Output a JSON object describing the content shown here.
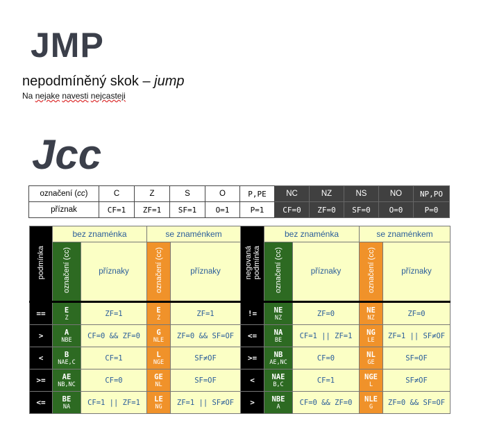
{
  "title": "JMP",
  "subtitle_main": "nepodmíněný skok – ",
  "subtitle_italic": "jump",
  "note": {
    "pre": "Na ",
    "w1": "nejake",
    "mid": " ",
    "w2": "navesti",
    "sp": " ",
    "w3": "nejcasteji"
  },
  "heading2": "Jcc",
  "top_table": {
    "row1_label_pre": "označení (",
    "row1_label_it": "cc",
    "row1_label_post": ")",
    "row2_label": "příznak",
    "codes": [
      "C",
      "Z",
      "S",
      "O",
      "P,PE",
      "NC",
      "NZ",
      "NS",
      "NO",
      "NP,PO"
    ],
    "flags": [
      "CF=1",
      "ZF=1",
      "SF=1",
      "O=1",
      "P=1",
      "CF=0",
      "ZF=0",
      "SF=0",
      "O=0",
      "P=0"
    ]
  },
  "main_table": {
    "header": {
      "unsigned": "bez znaménka",
      "signed": "se znaménkem",
      "condition": "podmínka",
      "neg_condition_1": "negovaná",
      "neg_condition_2": "podmínka",
      "code": "označení (cc)",
      "flags": "příznaky"
    },
    "rows": [
      {
        "op": "==",
        "u_cc": "E",
        "u_alt": "Z",
        "u_flags": "ZF=1",
        "s_cc": "E",
        "s_alt": "Z",
        "s_flags": "ZF=1",
        "nop": "!=",
        "nu_cc": "NE",
        "nu_alt": "NZ",
        "nu_flags": "ZF=0",
        "ns_cc": "NE",
        "ns_alt": "NZ",
        "ns_flags": "ZF=0"
      },
      {
        "op": ">",
        "u_cc": "A",
        "u_alt": "NBE",
        "u_flags": "CF=0 && ZF=0",
        "s_cc": "G",
        "s_alt": "NLE",
        "s_flags": "ZF=0 && SF=OF",
        "nop": "<=",
        "nu_cc": "NA",
        "nu_alt": "BE",
        "nu_flags": "CF=1 || ZF=1",
        "ns_cc": "NG",
        "ns_alt": "LE",
        "ns_flags": "ZF=1 || SF≠OF"
      },
      {
        "op": "<",
        "u_cc": "B",
        "u_alt": "NAE,C",
        "u_flags": "CF=1",
        "s_cc": "L",
        "s_alt": "NGE",
        "s_flags": "SF≠OF",
        "nop": ">=",
        "nu_cc": "NB",
        "nu_alt": "AE,NC",
        "nu_flags": "CF=0",
        "ns_cc": "NL",
        "ns_alt": "GE",
        "ns_flags": "SF=OF"
      },
      {
        "op": ">=",
        "u_cc": "AE",
        "u_alt": "NB,NC",
        "u_flags": "CF=0",
        "s_cc": "GE",
        "s_alt": "NL",
        "s_flags": "SF=OF",
        "nop": "<",
        "nu_cc": "NAE",
        "nu_alt": "B,C",
        "nu_flags": "CF=1",
        "ns_cc": "NGE",
        "ns_alt": "L",
        "ns_flags": "SF≠OF"
      },
      {
        "op": "<=",
        "u_cc": "BE",
        "u_alt": "NA",
        "u_flags": "CF=1 || ZF=1",
        "s_cc": "LE",
        "s_alt": "NG",
        "s_flags": "ZF=1 || SF≠OF",
        "nop": ">",
        "nu_cc": "NBE",
        "nu_alt": "A",
        "nu_flags": "CF=0 && ZF=0",
        "ns_cc": "NLE",
        "ns_alt": "G",
        "ns_flags": "ZF=0 && SF=OF"
      }
    ]
  },
  "colors": {
    "green": "#2d6a22",
    "orange": "#f0922a",
    "yellow": "#fbffc5",
    "dark": "#404040"
  }
}
